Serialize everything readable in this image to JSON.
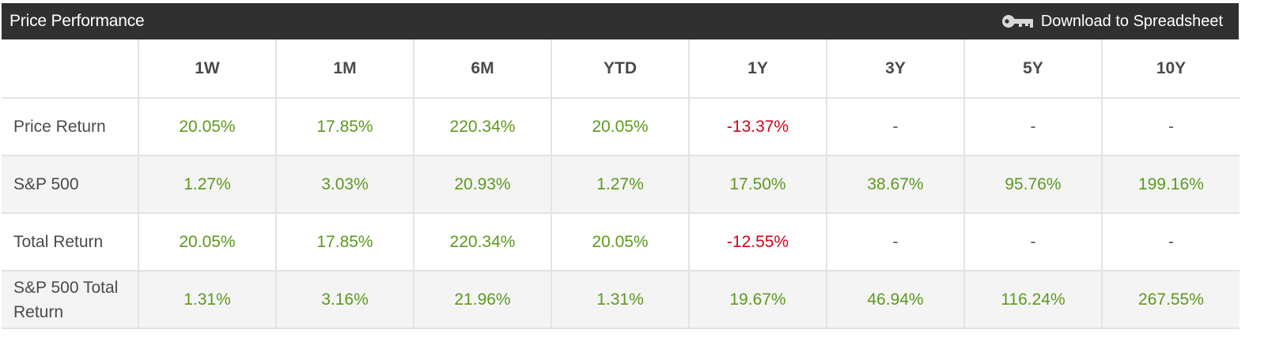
{
  "header": {
    "title": "Price Performance",
    "download_label": "Download to Spreadsheet"
  },
  "colors": {
    "header_bg": "#303030",
    "positive": "#5c9a1c",
    "negative": "#d0021b",
    "alt_row_bg": "#f4f4f4"
  },
  "table": {
    "columns": [
      "1W",
      "1M",
      "6M",
      "YTD",
      "1Y",
      "3Y",
      "5Y",
      "10Y"
    ],
    "rows": [
      {
        "label": "Price Return",
        "values": [
          "20.05%",
          "17.85%",
          "220.34%",
          "20.05%",
          "-13.37%",
          "-",
          "-",
          "-"
        ]
      },
      {
        "label": "S&P 500",
        "values": [
          "1.27%",
          "3.03%",
          "20.93%",
          "1.27%",
          "17.50%",
          "38.67%",
          "95.76%",
          "199.16%"
        ]
      },
      {
        "label": "Total Return",
        "values": [
          "20.05%",
          "17.85%",
          "220.34%",
          "20.05%",
          "-12.55%",
          "-",
          "-",
          "-"
        ]
      },
      {
        "label": "S&P 500 Total Return",
        "values": [
          "1.31%",
          "3.16%",
          "21.96%",
          "1.31%",
          "19.67%",
          "46.94%",
          "116.24%",
          "267.55%"
        ]
      }
    ]
  }
}
